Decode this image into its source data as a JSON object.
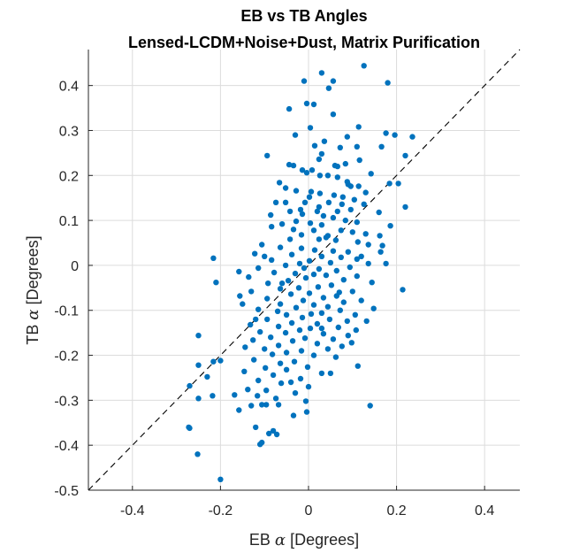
{
  "chart_data": {
    "type": "scatter",
    "title": "EB vs TB Angles",
    "subtitle": "Lensed-LCDM+Noise+Dust, Matrix Purification",
    "xlabel": {
      "prefix": "EB ",
      "symbol": "α",
      "suffix": " [Degrees]"
    },
    "ylabel": {
      "prefix": "TB ",
      "symbol": "α",
      "suffix": " [Degrees]"
    },
    "xlim": [
      -0.5,
      0.48
    ],
    "ylim": [
      -0.5,
      0.48
    ],
    "xticks": [
      -0.4,
      -0.2,
      0,
      0.2,
      0.4
    ],
    "xtick_labels": [
      "-0.4",
      "-0.2",
      "0",
      "0.2",
      "0.4"
    ],
    "yticks": [
      -0.5,
      -0.4,
      -0.3,
      -0.2,
      -0.1,
      0,
      0.1,
      0.2,
      0.3,
      0.4
    ],
    "ytick_labels": [
      "-0.5",
      "-0.4",
      "-0.3",
      "-0.2",
      "-0.1",
      "0",
      "0.1",
      "0.2",
      "0.3",
      "0.4"
    ],
    "grid": true,
    "reference_line": "y = x",
    "marker_color": "#0072BD",
    "points": [
      [
        0.126,
        0.444
      ],
      [
        0.03,
        0.428
      ],
      [
        -0.01,
        0.41
      ],
      [
        0.056,
        0.41
      ],
      [
        0.18,
        0.406
      ],
      [
        0.046,
        0.394
      ],
      [
        -0.004,
        0.36
      ],
      [
        0.012,
        0.358
      ],
      [
        -0.044,
        0.348
      ],
      [
        0.056,
        0.336
      ],
      [
        0.004,
        0.306
      ],
      [
        0.114,
        0.308
      ],
      [
        0.176,
        0.294
      ],
      [
        0.236,
        0.286
      ],
      [
        0.196,
        0.29
      ],
      [
        0.088,
        0.286
      ],
      [
        0.036,
        0.276
      ],
      [
        0.014,
        0.266
      ],
      [
        0.166,
        0.264
      ],
      [
        0.11,
        0.264
      ],
      [
        0.072,
        0.262
      ],
      [
        -0.094,
        0.244
      ],
      [
        0.22,
        0.244
      ],
      [
        0.024,
        0.236
      ],
      [
        0.116,
        0.234
      ],
      [
        0.06,
        0.222
      ],
      [
        -0.044,
        0.224
      ],
      [
        -0.034,
        0.222
      ],
      [
        0.066,
        0.22
      ],
      [
        -0.014,
        0.212
      ],
      [
        0.008,
        0.212
      ],
      [
        -0.004,
        0.206
      ],
      [
        0.026,
        0.2
      ],
      [
        0.044,
        0.2
      ],
      [
        0.066,
        0.196
      ],
      [
        0.204,
        0.182
      ],
      [
        0.184,
        0.182
      ],
      [
        0.088,
        0.186
      ],
      [
        0.114,
        0.176
      ],
      [
        0.096,
        0.176
      ],
      [
        0.13,
        0.162
      ],
      [
        -0.052,
        0.172
      ],
      [
        -0.028,
        0.166
      ],
      [
        0.006,
        0.164
      ],
      [
        0.026,
        0.16
      ],
      [
        0.058,
        0.156
      ],
      [
        0.078,
        0.152
      ],
      [
        0.104,
        0.146
      ],
      [
        -0.052,
        0.14
      ],
      [
        -0.074,
        0.14
      ],
      [
        -0.008,
        0.14
      ],
      [
        0.046,
        0.14
      ],
      [
        0.126,
        0.136
      ],
      [
        0.22,
        0.13
      ],
      [
        0.076,
        0.136
      ],
      [
        0.024,
        0.13
      ],
      [
        -0.018,
        0.124
      ],
      [
        -0.042,
        0.12
      ],
      [
        0.066,
        0.12
      ],
      [
        0.096,
        0.124
      ],
      [
        0.16,
        0.118
      ],
      [
        -0.086,
        0.112
      ],
      [
        -0.014,
        0.114
      ],
      [
        0.034,
        0.11
      ],
      [
        0.056,
        0.106
      ],
      [
        0.084,
        0.1
      ],
      [
        0.11,
        0.096
      ],
      [
        0.186,
        0.088
      ],
      [
        -0.028,
        0.098
      ],
      [
        0.004,
        0.094
      ],
      [
        0.03,
        0.09
      ],
      [
        -0.06,
        0.092
      ],
      [
        -0.084,
        0.086
      ],
      [
        -0.034,
        0.08
      ],
      [
        0.012,
        0.078
      ],
      [
        0.074,
        0.078
      ],
      [
        0.1,
        0.074
      ],
      [
        0.13,
        0.07
      ],
      [
        0.162,
        0.066
      ],
      [
        -0.016,
        0.068
      ],
      [
        0.044,
        0.066
      ],
      [
        0.024,
        0.058
      ],
      [
        -0.042,
        0.058
      ],
      [
        0.062,
        0.056
      ],
      [
        0.112,
        0.052
      ],
      [
        0.136,
        0.046
      ],
      [
        0.168,
        0.044
      ],
      [
        -0.106,
        0.046
      ],
      [
        -0.064,
        0.04
      ],
      [
        -0.016,
        0.038
      ],
      [
        0.014,
        0.034
      ],
      [
        0.056,
        0.032
      ],
      [
        0.09,
        0.03
      ],
      [
        0.164,
        0.03
      ],
      [
        -0.122,
        0.026
      ],
      [
        -0.038,
        0.024
      ],
      [
        0.03,
        0.02
      ],
      [
        0.074,
        0.018
      ],
      [
        0.11,
        0.014
      ],
      [
        -0.216,
        0.016
      ],
      [
        -0.084,
        0.012
      ],
      [
        0.002,
        0.01
      ],
      [
        0.05,
        0.006
      ],
      [
        0.136,
        0.004
      ],
      [
        0.176,
        0.004
      ],
      [
        -0.02,
        0.004
      ],
      [
        -0.052,
        0.0
      ],
      [
        0.094,
        -0.004
      ],
      [
        -0.114,
        -0.006
      ],
      [
        0.024,
        -0.008
      ],
      [
        0.064,
        -0.012
      ],
      [
        -0.158,
        -0.014
      ],
      [
        -0.078,
        -0.016
      ],
      [
        -0.03,
        -0.018
      ],
      [
        0.012,
        -0.02
      ],
      [
        0.04,
        -0.022
      ],
      [
        0.11,
        -0.024
      ],
      [
        -0.136,
        -0.026
      ],
      [
        -0.006,
        -0.028
      ],
      [
        0.08,
        -0.032
      ],
      [
        -0.046,
        -0.034
      ],
      [
        -0.21,
        -0.038
      ],
      [
        -0.092,
        -0.04
      ],
      [
        0.144,
        -0.038
      ],
      [
        0.052,
        -0.044
      ],
      [
        0.022,
        -0.048
      ],
      [
        -0.022,
        -0.05
      ],
      [
        -0.064,
        -0.052
      ],
      [
        0.214,
        -0.054
      ],
      [
        0.1,
        -0.058
      ],
      [
        -0.13,
        -0.058
      ],
      [
        0.002,
        -0.062
      ],
      [
        -0.04,
        -0.064
      ],
      [
        0.064,
        -0.068
      ],
      [
        0.034,
        -0.072
      ],
      [
        -0.156,
        -0.068
      ],
      [
        -0.094,
        -0.074
      ],
      [
        -0.012,
        -0.078
      ],
      [
        0.12,
        -0.078
      ],
      [
        0.08,
        -0.082
      ],
      [
        -0.064,
        -0.086
      ],
      [
        0.012,
        -0.088
      ],
      [
        -0.15,
        -0.086
      ],
      [
        0.044,
        -0.092
      ],
      [
        -0.028,
        -0.094
      ],
      [
        0.148,
        -0.096
      ],
      [
        -0.114,
        -0.098
      ],
      [
        -0.07,
        -0.102
      ],
      [
        0.072,
        -0.1
      ],
      [
        0.03,
        -0.106
      ],
      [
        0.006,
        -0.108
      ],
      [
        0.106,
        -0.11
      ],
      [
        -0.05,
        -0.11
      ],
      [
        -0.014,
        -0.116
      ],
      [
        -0.094,
        -0.12
      ],
      [
        0.048,
        -0.12
      ],
      [
        0.088,
        -0.124
      ],
      [
        0.132,
        -0.124
      ],
      [
        -0.038,
        -0.128
      ],
      [
        0.02,
        -0.13
      ],
      [
        -0.132,
        -0.132
      ],
      [
        -0.068,
        -0.136
      ],
      [
        0.068,
        -0.138
      ],
      [
        0.004,
        -0.14
      ],
      [
        -0.02,
        -0.144
      ],
      [
        0.108,
        -0.144
      ],
      [
        -0.11,
        -0.148
      ],
      [
        -0.052,
        -0.15
      ],
      [
        0.034,
        -0.152
      ],
      [
        0.09,
        -0.156
      ],
      [
        -0.25,
        -0.156
      ],
      [
        -0.086,
        -0.16
      ],
      [
        -0.008,
        -0.162
      ],
      [
        0.056,
        -0.164
      ],
      [
        -0.126,
        -0.166
      ],
      [
        -0.036,
        -0.168
      ],
      [
        0.098,
        -0.172
      ],
      [
        0.02,
        -0.174
      ],
      [
        -0.068,
        -0.178
      ],
      [
        0.076,
        -0.18
      ],
      [
        -0.144,
        -0.182
      ],
      [
        -0.1,
        -0.186
      ],
      [
        0.044,
        -0.186
      ],
      [
        -0.016,
        -0.19
      ],
      [
        -0.05,
        -0.194
      ],
      [
        -0.082,
        -0.198
      ],
      [
        0.012,
        -0.2
      ],
      [
        0.062,
        -0.204
      ],
      [
        -0.2,
        -0.212
      ],
      [
        -0.124,
        -0.21
      ],
      [
        -0.032,
        -0.214
      ],
      [
        -0.216,
        -0.214
      ],
      [
        -0.064,
        -0.218
      ],
      [
        -0.25,
        -0.222
      ],
      [
        0.112,
        -0.224
      ],
      [
        -0.002,
        -0.226
      ],
      [
        -0.098,
        -0.228
      ],
      [
        -0.05,
        -0.232
      ],
      [
        -0.146,
        -0.236
      ],
      [
        0.03,
        -0.24
      ],
      [
        -0.08,
        -0.244
      ],
      [
        -0.23,
        -0.248
      ],
      [
        -0.018,
        -0.252
      ],
      [
        -0.114,
        -0.256
      ],
      [
        -0.062,
        -0.262
      ],
      [
        -0.27,
        -0.268
      ],
      [
        0.0,
        -0.27
      ],
      [
        -0.138,
        -0.276
      ],
      [
        -0.096,
        -0.278
      ],
      [
        -0.03,
        -0.284
      ],
      [
        -0.168,
        -0.288
      ],
      [
        -0.218,
        -0.29
      ],
      [
        -0.116,
        -0.29
      ],
      [
        -0.074,
        -0.296
      ],
      [
        -0.25,
        -0.296
      ],
      [
        -0.006,
        -0.302
      ],
      [
        -0.106,
        -0.31
      ],
      [
        -0.096,
        -0.31
      ],
      [
        -0.13,
        -0.312
      ],
      [
        -0.158,
        -0.322
      ],
      [
        0.14,
        -0.312
      ],
      [
        -0.004,
        -0.326
      ],
      [
        -0.034,
        -0.334
      ],
      [
        -0.068,
        -0.31
      ],
      [
        -0.12,
        -0.36
      ],
      [
        -0.272,
        -0.36
      ],
      [
        -0.08,
        -0.368
      ],
      [
        -0.09,
        -0.374
      ],
      [
        -0.072,
        -0.376
      ],
      [
        -0.106,
        -0.394
      ],
      [
        -0.11,
        -0.398
      ],
      [
        -0.27,
        -0.362
      ],
      [
        -0.252,
        -0.42
      ],
      [
        -0.2,
        -0.476
      ],
      [
        0.03,
        0.248
      ],
      [
        -0.03,
        0.29
      ],
      [
        0.084,
        0.226
      ],
      [
        0.142,
        0.204
      ],
      [
        -0.066,
        0.184
      ],
      [
        0.002,
        0.152
      ],
      [
        0.04,
        0.062
      ],
      [
        -0.01,
        -0.006
      ],
      [
        0.03,
        -0.14
      ],
      [
        -0.04,
        -0.26
      ],
      [
        0.07,
        -0.06
      ],
      [
        0.12,
        0.02
      ],
      [
        0.02,
        0.12
      ],
      [
        -0.1,
        0.02
      ],
      [
        -0.06,
        -0.04
      ],
      [
        0.05,
        -0.24
      ],
      [
        0.09,
        0.18
      ],
      [
        -0.12,
        -0.12
      ]
    ]
  }
}
